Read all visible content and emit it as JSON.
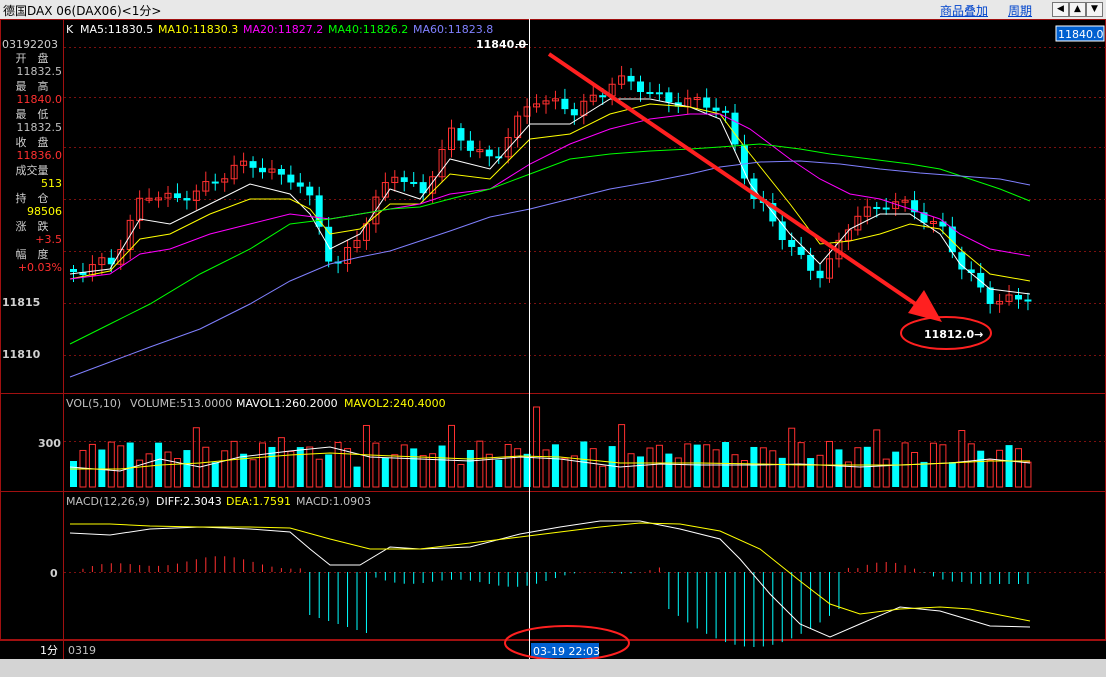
{
  "window": {
    "title": "德国DAX 06(DAX06)<1分>",
    "menu_overlay": "商品叠加",
    "menu_period": "周期",
    "buttons": [
      "◀",
      "▲",
      "▼",
      "▶"
    ]
  },
  "info_panel": {
    "time": "03192203",
    "rows": [
      {
        "label": "开　盘",
        "value": "11832.5",
        "color": "#c0c0c0"
      },
      {
        "label": "最　高",
        "value": "11840.0",
        "color": "#ff3030"
      },
      {
        "label": "最　低",
        "value": "11832.5",
        "color": "#c0c0c0"
      },
      {
        "label": "收　盘",
        "value": "11836.0",
        "color": "#ff3030"
      },
      {
        "label": "成交量",
        "value": "513",
        "color": "#ffff00"
      },
      {
        "label": "持　仓",
        "value": "98506",
        "color": "#ffff00"
      },
      {
        "label": "涨　跌",
        "value": "+3.5",
        "color": "#ff3030"
      },
      {
        "label": "幅　度",
        "value": "+0.03%",
        "color": "#ff3030"
      }
    ]
  },
  "price_chart": {
    "label_k": "K",
    "ma5": "MA5:11830.5",
    "ma10": "MA10:11830.3",
    "ma20": "MA20:11827.2",
    "ma40": "MA40:11826.2",
    "ma60": "MA60:11823.8",
    "y_ticks": [
      "11815",
      "11810"
    ],
    "price_box": "11840.0",
    "high_marker": "11840.0",
    "low_marker": "11812.0→",
    "colors": {
      "ma5": "#ffffff",
      "ma10": "#ffff00",
      "ma20": "#ff00ff",
      "ma40": "#00ff00",
      "ma60": "#8080ff",
      "up": "#ff3030",
      "down": "#00ffff"
    }
  },
  "volume_chart": {
    "title": "VOL(5,10)",
    "volume": "VOLUME:513.0000",
    "mavol1": "MAVOL1:260.2000",
    "mavol2": "MAVOL2:240.4000",
    "y_tick": "300"
  },
  "macd_chart": {
    "title": "MACD(12,26,9)",
    "diff": "DIFF:2.3043",
    "dea": "DEA:1.7591",
    "macd": "MACD:1.0903",
    "y_tick": "0"
  },
  "footer": {
    "period": "1分",
    "start_date": "0319",
    "cursor_time": "03-19 22:03"
  }
}
